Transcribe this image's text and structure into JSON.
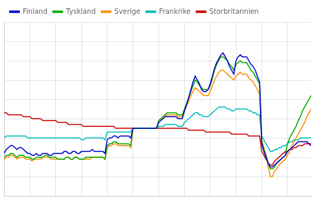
{
  "chart_data": {
    "type": "line",
    "x": [
      0,
      1,
      2,
      3,
      4,
      5,
      6,
      7,
      8,
      9,
      10,
      11,
      12,
      13,
      14,
      15,
      16,
      17,
      18,
      19,
      20,
      21,
      22,
      23,
      24,
      25,
      26,
      27,
      28,
      29,
      30,
      31,
      32,
      33,
      34,
      35,
      36,
      37,
      38,
      39,
      40,
      41,
      42,
      43,
      44,
      45,
      46,
      47,
      48,
      49,
      50,
      51,
      52,
      53,
      54,
      55,
      56,
      57,
      58,
      59,
      60,
      61,
      62,
      63,
      64,
      65,
      66,
      67,
      68,
      69,
      70,
      71,
      72,
      73,
      74,
      75,
      76,
      77,
      78,
      79,
      80,
      81,
      82,
      83,
      84,
      85,
      86,
      87,
      88,
      89,
      90,
      91,
      92,
      93,
      94,
      95,
      96,
      97,
      98,
      99,
      100,
      101,
      102,
      103,
      104,
      105,
      106,
      107,
      108,
      109,
      110,
      111,
      112,
      113,
      114,
      115,
      116,
      117,
      118,
      119,
      120,
      121,
      122,
      123,
      124,
      125,
      126,
      127,
      128,
      129,
      130,
      131,
      132,
      133,
      134,
      135,
      136,
      137,
      138,
      139,
      140,
      141,
      142,
      143
    ],
    "series": [
      {
        "name": "Finland",
        "color": "#0000CC",
        "values": [
          -13,
          -11,
          -10,
          -9,
          -9,
          -10,
          -11,
          -10,
          -10,
          -11,
          -12,
          -13,
          -13,
          -14,
          -14,
          -13,
          -14,
          -14,
          -13,
          -13,
          -13,
          -14,
          -14,
          -13,
          -13,
          -13,
          -13,
          -13,
          -12,
          -12,
          -13,
          -13,
          -12,
          -12,
          -13,
          -13,
          -12,
          -12,
          -12,
          -12,
          -12,
          -11,
          -12,
          -12,
          -12,
          -12,
          -12,
          -13,
          -6,
          -5,
          -5,
          -4,
          -4,
          -5,
          -4,
          -4,
          -4,
          -4,
          -4,
          -5,
          0,
          0,
          0,
          0,
          0,
          0,
          0,
          0,
          0,
          0,
          0,
          0,
          3,
          4,
          5,
          6,
          6,
          6,
          6,
          6,
          6,
          5,
          5,
          5,
          9,
          12,
          16,
          20,
          24,
          27,
          25,
          23,
          20,
          19,
          19,
          20,
          23,
          27,
          31,
          34,
          36,
          38,
          39,
          37,
          35,
          32,
          30,
          28,
          35,
          37,
          38,
          37,
          37,
          37,
          35,
          33,
          32,
          30,
          27,
          24,
          -8,
          -12,
          -15,
          -18,
          -20,
          -20,
          -19,
          -18,
          -17,
          -16,
          -15,
          -14,
          -12,
          -11,
          -10,
          -9,
          -8,
          -7,
          -7,
          -7,
          -7,
          -7,
          -8,
          -9
        ]
      },
      {
        "name": "Tyskland",
        "color": "#00AA00",
        "values": [
          -15,
          -14,
          -14,
          -13,
          -13,
          -14,
          -15,
          -14,
          -14,
          -14,
          -15,
          -15,
          -15,
          -16,
          -16,
          -15,
          -15,
          -15,
          -15,
          -14,
          -14,
          -15,
          -15,
          -15,
          -15,
          -16,
          -16,
          -16,
          -16,
          -15,
          -15,
          -16,
          -16,
          -15,
          -15,
          -16,
          -16,
          -16,
          -15,
          -15,
          -15,
          -15,
          -15,
          -15,
          -15,
          -15,
          -15,
          -16,
          -9,
          -8,
          -8,
          -7,
          -7,
          -8,
          -8,
          -8,
          -8,
          -8,
          -8,
          -9,
          0,
          0,
          0,
          0,
          0,
          0,
          0,
          0,
          0,
          0,
          0,
          0,
          4,
          5,
          6,
          7,
          8,
          8,
          8,
          8,
          8,
          7,
          7,
          7,
          10,
          13,
          16,
          19,
          22,
          25,
          24,
          22,
          21,
          20,
          20,
          20,
          22,
          26,
          30,
          33,
          35,
          37,
          37,
          36,
          35,
          33,
          32,
          30,
          33,
          34,
          35,
          34,
          34,
          34,
          32,
          30,
          29,
          27,
          25,
          23,
          -7,
          -11,
          -14,
          -18,
          -21,
          -21,
          -20,
          -18,
          -17,
          -16,
          -15,
          -14,
          -8,
          -5,
          -3,
          -1,
          1,
          4,
          6,
          9,
          11,
          13,
          15,
          17
        ]
      },
      {
        "name": "Sverige",
        "color": "#FF8C00",
        "values": [
          -16,
          -15,
          -15,
          -14,
          -14,
          -15,
          -16,
          -15,
          -15,
          -15,
          -16,
          -16,
          -16,
          -17,
          -16,
          -16,
          -16,
          -16,
          -15,
          -15,
          -15,
          -15,
          -16,
          -16,
          -16,
          -16,
          -16,
          -16,
          -16,
          -15,
          -15,
          -16,
          -16,
          -15,
          -15,
          -16,
          -16,
          -16,
          -16,
          -16,
          -16,
          -15,
          -15,
          -15,
          -15,
          -15,
          -15,
          -16,
          -10,
          -9,
          -9,
          -8,
          -8,
          -9,
          -9,
          -9,
          -9,
          -9,
          -9,
          -10,
          0,
          0,
          0,
          0,
          0,
          0,
          0,
          0,
          0,
          0,
          0,
          0,
          4,
          5,
          5,
          6,
          7,
          7,
          7,
          7,
          7,
          6,
          6,
          6,
          9,
          12,
          14,
          17,
          19,
          21,
          20,
          19,
          18,
          17,
          17,
          17,
          19,
          22,
          25,
          27,
          29,
          30,
          30,
          29,
          28,
          27,
          26,
          25,
          27,
          28,
          29,
          28,
          28,
          28,
          26,
          25,
          24,
          22,
          20,
          18,
          -6,
          -10,
          -14,
          -20,
          -25,
          -25,
          -22,
          -21,
          -19,
          -18,
          -17,
          -16,
          -14,
          -12,
          -9,
          -7,
          -5,
          -3,
          -1,
          1,
          3,
          6,
          8,
          10
        ]
      },
      {
        "name": "Frankrike",
        "color": "#00BBBB",
        "values": [
          -5,
          -4,
          -4,
          -4,
          -4,
          -4,
          -4,
          -4,
          -4,
          -4,
          -4,
          -5,
          -5,
          -5,
          -5,
          -5,
          -5,
          -5,
          -5,
          -5,
          -5,
          -5,
          -5,
          -5,
          -5,
          -5,
          -5,
          -5,
          -5,
          -5,
          -5,
          -5,
          -5,
          -5,
          -5,
          -5,
          -6,
          -6,
          -5,
          -5,
          -5,
          -5,
          -5,
          -5,
          -5,
          -5,
          -5,
          -6,
          -2,
          -2,
          -2,
          -2,
          -2,
          -2,
          -2,
          -2,
          -2,
          -2,
          -2,
          -2,
          0,
          0,
          0,
          0,
          0,
          0,
          0,
          0,
          0,
          0,
          0,
          0,
          1,
          1,
          1,
          2,
          2,
          2,
          2,
          2,
          2,
          1,
          1,
          1,
          3,
          4,
          5,
          6,
          7,
          8,
          8,
          7,
          7,
          6,
          6,
          6,
          7,
          8,
          9,
          10,
          11,
          11,
          11,
          11,
          10,
          10,
          9,
          9,
          10,
          10,
          10,
          10,
          10,
          10,
          9,
          9,
          8,
          8,
          7,
          7,
          -4,
          -6,
          -8,
          -10,
          -12,
          -12,
          -11,
          -11,
          -10,
          -10,
          -9,
          -9,
          -8,
          -7,
          -7,
          -6,
          -6,
          -6,
          -5,
          -5,
          -5,
          -5,
          -5,
          -5
        ]
      },
      {
        "name": "Storbritannien",
        "color": "#CC0000",
        "values": [
          8,
          8,
          7,
          7,
          7,
          7,
          7,
          7,
          7,
          6,
          6,
          6,
          6,
          5,
          5,
          5,
          5,
          5,
          4,
          4,
          4,
          4,
          4,
          4,
          4,
          3,
          3,
          3,
          3,
          3,
          2,
          2,
          2,
          2,
          2,
          2,
          2,
          1,
          1,
          1,
          1,
          1,
          1,
          1,
          1,
          1,
          1,
          1,
          1,
          1,
          1,
          1,
          0,
          0,
          0,
          0,
          0,
          0,
          0,
          0,
          0,
          0,
          0,
          0,
          0,
          0,
          0,
          0,
          0,
          0,
          0,
          0,
          0,
          0,
          0,
          0,
          0,
          0,
          0,
          0,
          0,
          0,
          0,
          0,
          0,
          0,
          -1,
          -1,
          -1,
          -1,
          -1,
          -1,
          -1,
          -1,
          -2,
          -2,
          -2,
          -2,
          -2,
          -2,
          -2,
          -2,
          -2,
          -2,
          -2,
          -2,
          -3,
          -3,
          -3,
          -3,
          -3,
          -3,
          -3,
          -3,
          -4,
          -4,
          -4,
          -4,
          -4,
          -4,
          -12,
          -14,
          -16,
          -18,
          -19,
          -19,
          -17,
          -16,
          -15,
          -14,
          -13,
          -12,
          -12,
          -11,
          -11,
          -10,
          -10,
          -9,
          -9,
          -9,
          -8,
          -8,
          -8,
          -8
        ]
      }
    ],
    "xlim": [
      0,
      143
    ],
    "xticks": [
      0,
      12,
      24,
      36,
      48,
      60,
      72,
      84,
      96,
      108,
      120,
      132
    ],
    "ylim": [
      -35,
      55
    ],
    "yticks": [
      -35,
      -25,
      -15,
      -5,
      5,
      15,
      25,
      35,
      45,
      55
    ],
    "grid": true,
    "legend": "upper left",
    "tick_labels": false
  }
}
